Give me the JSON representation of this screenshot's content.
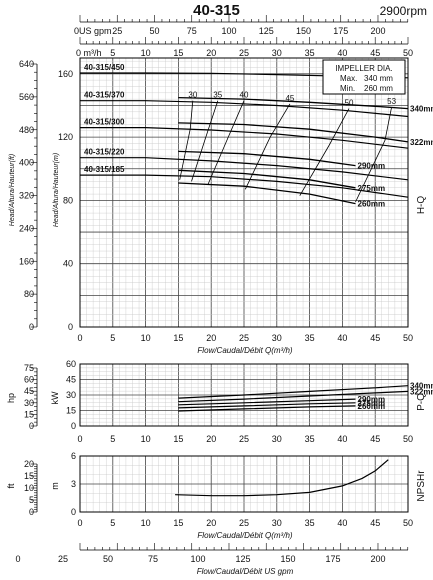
{
  "header": {
    "model": "40-315",
    "speed": "2900rpm"
  },
  "chart_data": {
    "type": "line",
    "legend_box": {
      "title": "IMPELLER DIA.",
      "max_label": "Max.",
      "max_value": "340 mm",
      "min_label": "Min.",
      "min_value": "260 mm"
    },
    "axes": {
      "top_usgpm": {
        "label": "0US gpm",
        "ticks": [
          25,
          50,
          75,
          100,
          125,
          150,
          175,
          200
        ]
      },
      "top_m3h": {
        "label": "0   m³/h",
        "ticks": [
          5,
          10,
          15,
          20,
          25,
          30,
          35,
          40,
          45,
          50
        ]
      },
      "bottom_usgpm": {
        "label": "Flow/Caudal/Débit  US gpm",
        "ticks": [
          0,
          25,
          50,
          75,
          100,
          125,
          150,
          175,
          200
        ]
      },
      "x_label": "Flow/Caudal/Débit Q(m³/h)",
      "x_ticks": [
        0,
        5,
        10,
        15,
        20,
        25,
        30,
        35,
        40,
        45,
        50
      ],
      "x_range": [
        0,
        50
      ]
    },
    "hq": {
      "side_label": "H-Q",
      "ylabel_m": "Head/Altura/Hauteur(m)",
      "ylabel_ft": "Head/Altura/Hauteur(ft)",
      "y_range": [
        0,
        170
      ],
      "ticks_m": [
        0,
        40,
        80,
        120,
        160
      ],
      "ticks_ft": [
        0,
        80,
        160,
        240,
        320,
        400,
        480,
        560,
        640
      ],
      "series": [
        {
          "name": "40-315/450",
          "x": [
            0,
            10,
            20,
            30,
            40,
            50
          ],
          "y": [
            160.5,
            160.5,
            160.3,
            159.5,
            158.5,
            157.5
          ]
        },
        {
          "name": "40-315/370",
          "x": [
            0,
            10,
            20,
            30,
            40,
            50
          ],
          "y": [
            143,
            143,
            142,
            140,
            137,
            133
          ]
        },
        {
          "name": "40-315/300",
          "x": [
            0,
            10,
            20,
            30,
            40,
            50
          ],
          "y": [
            126,
            126,
            124.5,
            122,
            118,
            113
          ]
        },
        {
          "name": "40-315/220",
          "x": [
            0,
            10,
            20,
            30,
            40,
            50
          ],
          "y": [
            107,
            107,
            105,
            102,
            98,
            93
          ]
        },
        {
          "name": "40-315/185",
          "x": [
            0,
            10,
            20,
            30,
            40,
            50
          ],
          "y": [
            96,
            96,
            95,
            92,
            88,
            82
          ]
        }
      ],
      "curves": [
        {
          "name": "340mm",
          "x": [
            15,
            25,
            35,
            45,
            50
          ],
          "y": [
            145,
            144,
            142,
            139.5,
            138
          ]
        },
        {
          "name": "322mm",
          "x": [
            15,
            25,
            35,
            45,
            50
          ],
          "y": [
            129,
            128,
            125,
            120,
            117
          ]
        },
        {
          "name": "290mm",
          "x": [
            15,
            25,
            35,
            42
          ],
          "y": [
            111,
            109.5,
            106,
            102
          ]
        },
        {
          "name": "275mm",
          "x": [
            15,
            25,
            35,
            42
          ],
          "y": [
            99,
            97,
            93,
            88
          ]
        },
        {
          "name": "260mm",
          "x": [
            15,
            25,
            35,
            42
          ],
          "y": [
            91,
            89,
            84,
            78
          ]
        }
      ],
      "efficiency_labels": [
        "30",
        "35",
        "40",
        "45",
        "50",
        "53"
      ],
      "efficiency_lines": [
        {
          "label": "30",
          "x": [
            15.2,
            16.8,
            17.2
          ],
          "y": [
            93,
            125,
            143
          ]
        },
        {
          "label": "35",
          "x": [
            17.0,
            19.5,
            21.0
          ],
          "y": [
            92,
            124,
            143
          ]
        },
        {
          "label": "40",
          "x": [
            19.5,
            22.8,
            25.0
          ],
          "y": [
            90,
            122,
            143
          ]
        },
        {
          "label": "45",
          "x": [
            25.2,
            29.0,
            32.0
          ],
          "y": [
            87,
            120,
            141
          ]
        },
        {
          "label": "50",
          "x": [
            33.5,
            38.0,
            41.0
          ],
          "y": [
            83,
            115,
            138
          ]
        },
        {
          "label": "53",
          "x": [
            42.0,
            46.5,
            47.5
          ],
          "y": [
            79,
            118,
            139
          ]
        }
      ]
    },
    "pq": {
      "side_label": "P-Q",
      "ylabel_kw": "kW",
      "ylabel_hp": "hp",
      "y_range": [
        0,
        60
      ],
      "ticks_kw": [
        0,
        15,
        30,
        45,
        60
      ],
      "ticks_hp": [
        0,
        15,
        30,
        45,
        60,
        75
      ],
      "series": [
        {
          "name": "340mm",
          "x": [
            15,
            25,
            35,
            45,
            50
          ],
          "y": [
            27,
            30,
            33.5,
            37,
            39
          ]
        },
        {
          "name": "322mm",
          "x": [
            15,
            25,
            35,
            45,
            50
          ],
          "y": [
            23.5,
            26,
            29,
            32,
            33.5
          ]
        },
        {
          "name": "290mm",
          "x": [
            15,
            25,
            35,
            42
          ],
          "y": [
            20.5,
            22.5,
            24.5,
            26
          ]
        },
        {
          "name": "275mm",
          "x": [
            15,
            25,
            35,
            42
          ],
          "y": [
            17.5,
            19.5,
            21.5,
            22.5
          ]
        },
        {
          "name": "260mm",
          "x": [
            15,
            25,
            35,
            42
          ],
          "y": [
            14.5,
            16.5,
            18.5,
            19.5
          ]
        }
      ]
    },
    "npsh": {
      "side_label": "NPSHr",
      "ylabel_m": "m",
      "ylabel_ft": "ft",
      "y_range": [
        0,
        6
      ],
      "ticks_m": [
        0,
        3,
        6
      ],
      "ticks_ft": [
        0,
        5,
        10,
        15,
        20
      ],
      "series": [
        {
          "name": "NPSHr",
          "x": [
            14.5,
            20,
            25,
            30,
            35,
            40,
            43,
            45,
            47
          ],
          "y": [
            1.85,
            1.75,
            1.75,
            1.85,
            2.1,
            2.8,
            3.6,
            4.4,
            5.6
          ]
        }
      ]
    }
  }
}
